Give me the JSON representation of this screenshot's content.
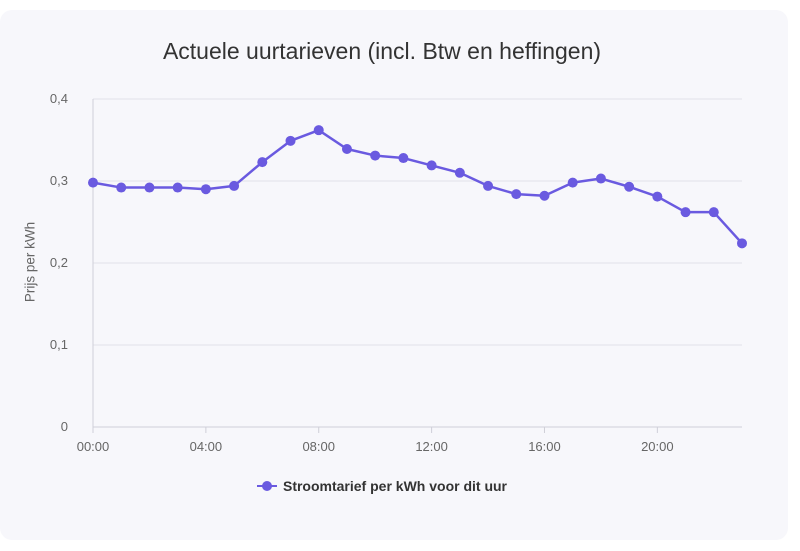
{
  "chart_data": {
    "type": "line",
    "title": "Actuele uurtarieven (incl. Btw en heffingen)",
    "ylabel": "Prijs per kWh",
    "xlabel": "",
    "ylim": [
      0,
      0.4
    ],
    "y_ticks": [
      "0",
      "0,1",
      "0,2",
      "0,3",
      "0,4"
    ],
    "x_ticks": [
      "00:00",
      "04:00",
      "08:00",
      "12:00",
      "16:00",
      "20:00"
    ],
    "x_tick_hours": [
      0,
      4,
      8,
      12,
      16,
      20
    ],
    "x": [
      0,
      1,
      2,
      3,
      4,
      5,
      6,
      7,
      8,
      9,
      10,
      11,
      12,
      13,
      14,
      15,
      16,
      17,
      18,
      19,
      20,
      21,
      22,
      23
    ],
    "series": [
      {
        "name": "Stroomtarief per kWh voor dit uur",
        "color": "#6a5ae0",
        "values": [
          0.298,
          0.292,
          0.292,
          0.292,
          0.29,
          0.294,
          0.323,
          0.349,
          0.362,
          0.339,
          0.331,
          0.328,
          0.319,
          0.31,
          0.294,
          0.284,
          0.282,
          0.298,
          0.303,
          0.293,
          0.281,
          0.262,
          0.262,
          0.224
        ]
      }
    ],
    "grid": true,
    "legend_position": "bottom"
  }
}
